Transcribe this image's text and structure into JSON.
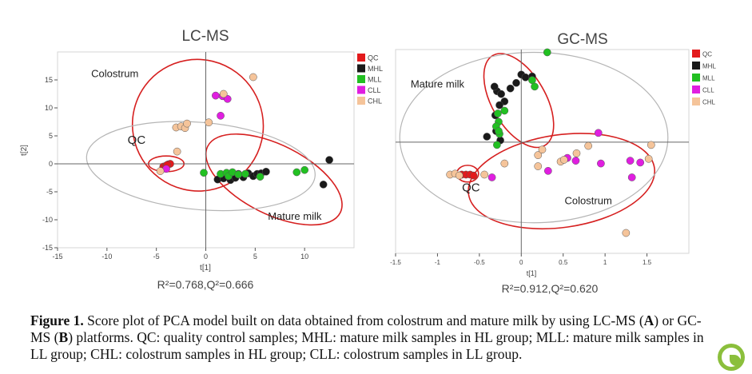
{
  "colors": {
    "QC": "#e31a1c",
    "MHL": "#1a1a1a",
    "MLL": "#22c022",
    "CLL": "#e01ee0",
    "CHL": "#f5c49a",
    "ellipse_red": "#d62020",
    "ellipse_gray": "#b5b5b5"
  },
  "caption": {
    "label": "Figure 1.",
    "text_1": " Score plot of PCA model built on data obtained from colostrum and mature milk by using LC-MS (",
    "a": "A",
    "text_2": ") or GC-MS (",
    "b": "B",
    "text_3": ") platforms. QC: quality control samples; MHL: mature milk samples in HL group; MLL: mature milk samples in LL group; CHL: colostrum samples in HL group; CLL: colostrum samples in LL group."
  },
  "logo_icon": "green-leaf-badge-icon",
  "chart_data": [
    {
      "type": "scatter",
      "title": "LC-MS",
      "xlabel": "t[1]",
      "ylabel": "t[2]",
      "xlim": [
        -15,
        15
      ],
      "ylim": [
        -15,
        20
      ],
      "xticks": [
        -15,
        -10,
        -5,
        0,
        5,
        10
      ],
      "yticks": [
        -15,
        -10,
        -5,
        0,
        5,
        10,
        15
      ],
      "stats": "R²=0.768,Q²=0.666",
      "legend_position": "top-right",
      "legend": [
        "QC",
        "MHL",
        "MLL",
        "CLL",
        "CHL"
      ],
      "annotations": [
        {
          "text": "Colostrum",
          "x": -9.2,
          "y": 15.5
        },
        {
          "text": "QC",
          "x": -7.0,
          "y": 3.6
        },
        {
          "text": "Mature milk",
          "x": 9.0,
          "y": -10.0
        }
      ],
      "series": [
        {
          "name": "QC",
          "points": [
            [
              -4.3,
              -0.5
            ],
            [
              -4.0,
              -0.3
            ],
            [
              -3.8,
              -0.1
            ],
            [
              -3.6,
              0.0
            ],
            [
              -4.1,
              -0.6
            ],
            [
              -3.9,
              -0.2
            ]
          ]
        },
        {
          "name": "MHL",
          "points": [
            [
              1.2,
              -2.8
            ],
            [
              1.8,
              -2.6
            ],
            [
              2.5,
              -2.9
            ],
            [
              3.0,
              -2.5
            ],
            [
              3.3,
              -1.8
            ],
            [
              3.8,
              -2.4
            ],
            [
              4.3,
              -1.7
            ],
            [
              4.8,
              -2.2
            ],
            [
              5.2,
              -1.8
            ],
            [
              5.6,
              -1.7
            ],
            [
              6.1,
              -1.4
            ],
            [
              12.5,
              0.7
            ],
            [
              11.9,
              -3.7
            ]
          ]
        },
        {
          "name": "MLL",
          "points": [
            [
              -0.2,
              -1.6
            ],
            [
              1.5,
              -1.8
            ],
            [
              2.1,
              -1.6
            ],
            [
              2.3,
              -2.2
            ],
            [
              2.7,
              -1.5
            ],
            [
              3.3,
              -1.9
            ],
            [
              4.0,
              -1.8
            ],
            [
              5.5,
              -2.3
            ],
            [
              9.2,
              -1.5
            ],
            [
              10.0,
              -1.1
            ]
          ]
        },
        {
          "name": "CLL",
          "points": [
            [
              1.0,
              12.2
            ],
            [
              1.7,
              12.1
            ],
            [
              2.2,
              11.6
            ],
            [
              1.5,
              8.6
            ],
            [
              -4.0,
              -0.9
            ]
          ]
        },
        {
          "name": "CHL",
          "points": [
            [
              -3.0,
              6.5
            ],
            [
              -2.5,
              6.7
            ],
            [
              -2.1,
              6.4
            ],
            [
              -1.9,
              7.2
            ],
            [
              0.3,
              7.4
            ],
            [
              1.8,
              12.5
            ],
            [
              4.8,
              15.5
            ],
            [
              -2.9,
              2.2
            ],
            [
              -4.6,
              -1.3
            ]
          ]
        }
      ],
      "ellipses": [
        {
          "label": "Colostrum",
          "cx": -0.8,
          "cy": 6.9,
          "rx": 6.6,
          "ry": 11.8,
          "angle_deg": 31.6
        },
        {
          "label": "QC",
          "cx": -4.0,
          "cy": 0.0,
          "rx": 1.8,
          "ry": 1.4,
          "angle_deg": 0
        },
        {
          "label": "Mature milk",
          "cx": 6.9,
          "cy": -2.8,
          "rx": 7.5,
          "ry": 6.2,
          "angle_deg": -26.6
        },
        {
          "label": "",
          "cx": -0.5,
          "cy": -0.4,
          "rx": 11.6,
          "ry": 7.8,
          "angle_deg": -5,
          "gray": true
        }
      ]
    },
    {
      "type": "scatter",
      "title": "GC-MS",
      "xlabel": "t[1]",
      "ylabel": "",
      "xlim": [
        -1.5,
        2.0
      ],
      "ylim": [
        -1.2,
        1.0
      ],
      "xticks": [
        -1.5,
        -1,
        -0.5,
        0,
        0.5,
        1,
        1.5
      ],
      "stats": "R²=0.912,Q²=0.620",
      "legend_position": "top-right",
      "legend": [
        "QC",
        "MHL",
        "MLL",
        "CLL",
        "CHL"
      ],
      "annotations": [
        {
          "text": "Mature milk",
          "x": -1.0,
          "y": 0.59
        },
        {
          "text": "QC",
          "x": -0.6,
          "y": -0.53
        },
        {
          "text": "Colostrum",
          "x": 0.8,
          "y": -0.67
        }
      ],
      "series": [
        {
          "name": "QC",
          "points": [
            [
              -0.71,
              -0.35
            ],
            [
              -0.66,
              -0.35
            ],
            [
              -0.61,
              -0.35
            ],
            [
              -0.57,
              -0.36
            ]
          ]
        },
        {
          "name": "MHL",
          "points": [
            [
              0.0,
              0.73
            ],
            [
              0.05,
              0.7
            ],
            [
              0.13,
              0.71
            ],
            [
              -0.06,
              0.64
            ],
            [
              -0.13,
              0.58
            ],
            [
              -0.29,
              0.55
            ],
            [
              -0.32,
              0.6
            ],
            [
              -0.24,
              0.52
            ],
            [
              -0.2,
              0.44
            ],
            [
              -0.26,
              0.4
            ],
            [
              -0.31,
              0.29
            ],
            [
              -0.41,
              0.06
            ],
            [
              -0.3,
              0.12
            ],
            [
              -0.25,
              0.02
            ]
          ]
        },
        {
          "name": "MLL",
          "points": [
            [
              0.31,
              0.97
            ],
            [
              0.16,
              0.6
            ],
            [
              0.13,
              0.67
            ],
            [
              -0.2,
              0.34
            ],
            [
              -0.28,
              0.31
            ],
            [
              -0.27,
              0.22
            ],
            [
              -0.3,
              0.17
            ],
            [
              -0.26,
              0.09
            ],
            [
              -0.29,
              -0.03
            ],
            [
              -0.27,
              0.12
            ]
          ]
        },
        {
          "name": "CLL",
          "points": [
            [
              0.92,
              0.1
            ],
            [
              0.55,
              -0.17
            ],
            [
              0.65,
              -0.2
            ],
            [
              0.95,
              -0.23
            ],
            [
              1.3,
              -0.2
            ],
            [
              1.42,
              -0.22
            ],
            [
              1.32,
              -0.38
            ],
            [
              0.32,
              -0.31
            ],
            [
              -0.35,
              -0.38
            ]
          ]
        },
        {
          "name": "CHL",
          "points": [
            [
              -0.85,
              -0.35
            ],
            [
              -0.79,
              -0.34
            ],
            [
              -0.74,
              -0.36
            ],
            [
              -0.44,
              -0.35
            ],
            [
              -0.2,
              -0.23
            ],
            [
              0.2,
              -0.26
            ],
            [
              0.2,
              -0.14
            ],
            [
              0.25,
              -0.08
            ],
            [
              0.47,
              -0.21
            ],
            [
              0.51,
              -0.19
            ],
            [
              0.66,
              -0.12
            ],
            [
              0.8,
              -0.04
            ],
            [
              1.55,
              -0.03
            ],
            [
              1.52,
              -0.18
            ],
            [
              1.25,
              -0.98
            ]
          ]
        }
      ],
      "ellipses": [
        {
          "label": "Mature milk",
          "cx": -0.03,
          "cy": 0.45,
          "rx": 0.62,
          "ry": 0.29,
          "angle_deg": -60
        },
        {
          "label": "QC",
          "cx": -0.64,
          "cy": -0.34,
          "rx": 0.13,
          "ry": 0.09,
          "angle_deg": 0
        },
        {
          "label": "Colostrum",
          "cx": 0.48,
          "cy": -0.42,
          "rx": 1.12,
          "ry": 0.5,
          "angle_deg": 8
        },
        {
          "label": "",
          "cx": 0.15,
          "cy": 0.05,
          "rx": 1.6,
          "ry": 0.92,
          "angle_deg": 0,
          "gray": true
        }
      ]
    }
  ]
}
